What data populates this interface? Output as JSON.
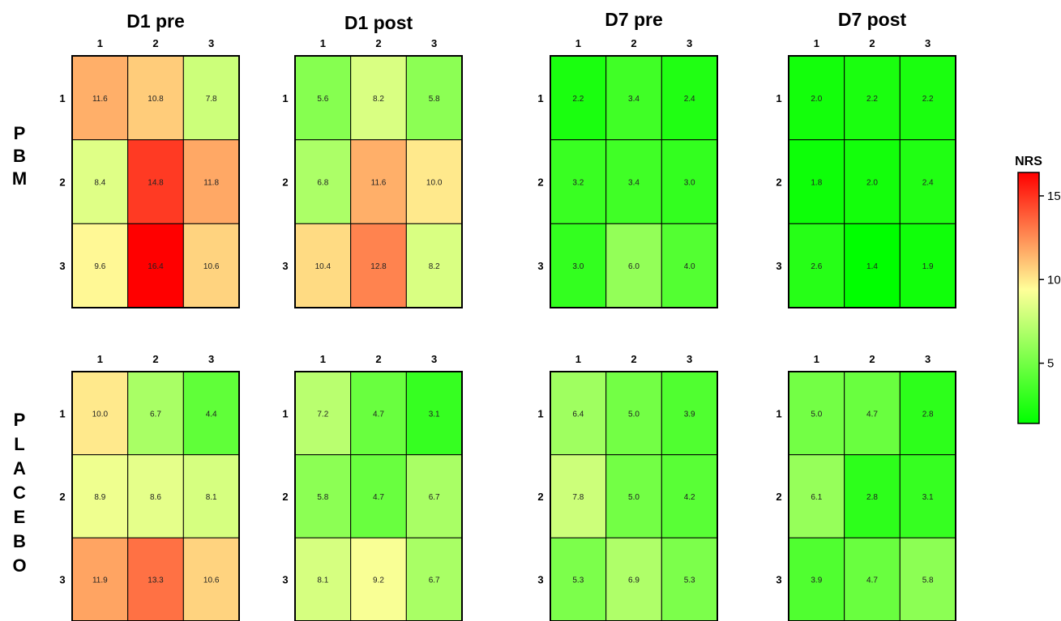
{
  "chart_data": {
    "type": "heatmap",
    "panel_titles": [
      "D1 pre",
      "D1 post",
      "D7 pre",
      "D7 post"
    ],
    "row_groups": [
      {
        "label": "PBM",
        "letters": [
          "P",
          "B",
          "M"
        ]
      },
      {
        "label": "PLACEBO",
        "letters": [
          "P",
          "L",
          "A",
          "C",
          "E",
          "B",
          "O"
        ]
      }
    ],
    "column_labels": [
      "1",
      "2",
      "3"
    ],
    "row_labels": [
      "1",
      "2",
      "3"
    ],
    "panels": [
      {
        "group": "PBM",
        "title": "D1 pre",
        "values": [
          [
            11.6,
            10.8,
            7.8
          ],
          [
            8.4,
            14.8,
            11.8
          ],
          [
            9.6,
            16.4,
            10.6
          ]
        ],
        "labels": [
          [
            "11.6",
            "10.8",
            "7.8"
          ],
          [
            "8.4",
            "14.8",
            "11.8"
          ],
          [
            "9.6",
            "16.4",
            "10.6"
          ]
        ]
      },
      {
        "group": "PBM",
        "title": "D1 post",
        "values": [
          [
            5.6,
            8.2,
            5.8
          ],
          [
            6.8,
            11.6,
            10.0
          ],
          [
            10.4,
            12.8,
            8.2
          ]
        ],
        "labels": [
          [
            "5.6",
            "8.2",
            "5.8"
          ],
          [
            "6.8",
            "11.6",
            "10.0"
          ],
          [
            "10.4",
            "12.8",
            "8.2"
          ]
        ]
      },
      {
        "group": "PBM",
        "title": "D7 pre",
        "values": [
          [
            2.2,
            3.4,
            2.4
          ],
          [
            3.2,
            3.4,
            3.0
          ],
          [
            3.0,
            6.0,
            4.0
          ]
        ],
        "labels": [
          [
            "2.2",
            "3.4",
            "2.4"
          ],
          [
            "3.2",
            "3.4",
            "3.0"
          ],
          [
            "3.0",
            "6.0",
            "4.0"
          ]
        ]
      },
      {
        "group": "PBM",
        "title": "D7 post",
        "values": [
          [
            2.0,
            2.2,
            2.2
          ],
          [
            1.8,
            2.0,
            2.4
          ],
          [
            2.6,
            1.4,
            1.9
          ]
        ],
        "labels": [
          [
            "2.0",
            "2.2",
            "2.2"
          ],
          [
            "1.8",
            "2.0",
            "2.4"
          ],
          [
            "2.6",
            "1.4",
            "1.9"
          ]
        ]
      },
      {
        "group": "PLACEBO",
        "title": "D1 pre",
        "values": [
          [
            10.0,
            6.7,
            4.4
          ],
          [
            8.9,
            8.6,
            8.1
          ],
          [
            11.9,
            13.3,
            10.6
          ]
        ],
        "labels": [
          [
            "10.0",
            "6.7",
            "4.4"
          ],
          [
            "8.9",
            "8.6",
            "8.1"
          ],
          [
            "11.9",
            "13.3",
            "10.6"
          ]
        ]
      },
      {
        "group": "PLACEBO",
        "title": "D1 post",
        "values": [
          [
            7.2,
            4.7,
            3.1
          ],
          [
            5.8,
            4.7,
            6.7
          ],
          [
            8.1,
            9.2,
            6.7
          ]
        ],
        "labels": [
          [
            "7.2",
            "4.7",
            "3.1"
          ],
          [
            "5.8",
            "4.7",
            "6.7"
          ],
          [
            "8.1",
            "9.2",
            "6.7"
          ]
        ]
      },
      {
        "group": "PLACEBO",
        "title": "D7 pre",
        "values": [
          [
            6.4,
            5.0,
            3.9
          ],
          [
            7.8,
            5.0,
            4.2
          ],
          [
            5.3,
            6.9,
            5.3
          ]
        ],
        "labels": [
          [
            "6.4",
            "5.0",
            "3.9"
          ],
          [
            "7.8",
            "5.0",
            "4.2"
          ],
          [
            "5.3",
            "6.9",
            "5.3"
          ]
        ]
      },
      {
        "group": "PLACEBO",
        "title": "D7 post",
        "values": [
          [
            5.0,
            4.7,
            2.8
          ],
          [
            6.1,
            2.8,
            3.1
          ],
          [
            3.9,
            4.7,
            5.8
          ]
        ],
        "labels": [
          [
            "5.0",
            "4.7",
            "2.8"
          ],
          [
            "6.1",
            "2.8",
            "3.1"
          ],
          [
            "3.9",
            "4.7",
            "5.8"
          ]
        ]
      }
    ],
    "colorbar": {
      "title": "NRS",
      "range": [
        1.4,
        16.4
      ],
      "ticks": [
        5,
        10,
        15
      ],
      "colors": {
        "low": "#00ff00",
        "mid": "#ffff99",
        "high": "#ff0000"
      },
      "mid_value": 9.4
    }
  }
}
